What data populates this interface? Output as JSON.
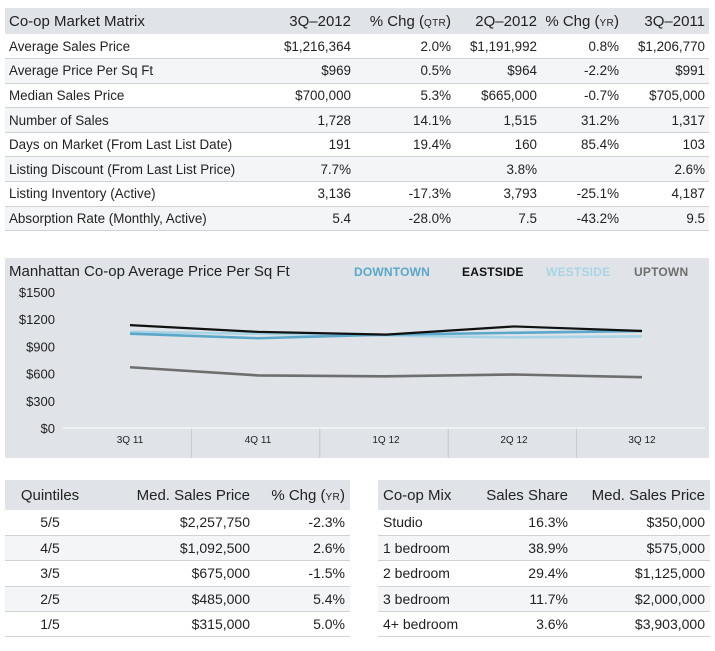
{
  "matrix": {
    "headers": [
      "Co-op  Market Matrix",
      "3Q–2012",
      "% Chg (",
      "QTR",
      ")",
      "2Q–2012",
      "% Chg (",
      "YR",
      ")",
      "3Q–2011"
    ],
    "rows": [
      [
        "Average Sales Price",
        "$1,216,364",
        "2.0%",
        "$1,191,992",
        "0.8%",
        "$1,206,770"
      ],
      [
        "Average Price Per Sq Ft",
        "$969",
        "0.5%",
        "$964",
        "-2.2%",
        "$991"
      ],
      [
        "Median Sales Price",
        "$700,000",
        "5.3%",
        "$665,000",
        "-0.7%",
        "$705,000"
      ],
      [
        "Number of Sales",
        "1,728",
        "14.1%",
        "1,515",
        "31.2%",
        "1,317"
      ],
      [
        "Days on Market (From Last List Date)",
        "191",
        "19.4%",
        "160",
        "85.4%",
        "103"
      ],
      [
        "Listing Discount (From Last List Price)",
        "7.7%",
        "",
        "3.8%",
        "",
        "2.6%"
      ],
      [
        "Listing Inventory (Active)",
        "3,136",
        "-17.3%",
        "3,793",
        "-25.1%",
        "4,187"
      ],
      [
        "Absorption Rate (Monthly, Active)",
        "5.4",
        "-28.0%",
        "7.5",
        "-43.2%",
        "9.5"
      ]
    ]
  },
  "chart_data": {
    "type": "line",
    "title": "Manhattan Co-op  Average Price Per Sq Ft",
    "categories": [
      "3Q 11",
      "4Q 11",
      "1Q 12",
      "2Q 12",
      "3Q 12"
    ],
    "yticks": [
      "$1500",
      "$1200",
      "$900",
      "$600",
      "$300",
      "$0"
    ],
    "ylim": [
      0,
      1500
    ],
    "grid": false,
    "legend_position": "top-right",
    "series": [
      {
        "name": "DOWNTOWN",
        "color": "#5aa7c9",
        "values": [
          1040,
          990,
          1030,
          1050,
          1070
        ]
      },
      {
        "name": "EASTSIDE",
        "color": "#111111",
        "values": [
          1135,
          1060,
          1030,
          1120,
          1070
        ]
      },
      {
        "name": "WESTSIDE",
        "color": "#a9d4e6",
        "values": [
          1060,
          1040,
          1020,
          1000,
          1010
        ]
      },
      {
        "name": "UPTOWN",
        "color": "#6e6e6e",
        "values": [
          670,
          580,
          570,
          590,
          560
        ]
      }
    ]
  },
  "quintiles": {
    "headers": [
      "Quintiles",
      "Med. Sales Price",
      "% Chg (",
      "YR",
      ")"
    ],
    "rows": [
      [
        "5/5",
        "$2,257,750",
        "-2.3%"
      ],
      [
        "4/5",
        "$1,092,500",
        "2.6%"
      ],
      [
        "3/5",
        "$675,000",
        "-1.5%"
      ],
      [
        "2/5",
        "$485,000",
        "5.4%"
      ],
      [
        "1/5",
        "$315,000",
        "5.0%"
      ]
    ]
  },
  "mix": {
    "headers": [
      "Co-op Mix",
      "Sales Share",
      "Med. Sales Price"
    ],
    "rows": [
      [
        "Studio",
        "16.3%",
        "$350,000"
      ],
      [
        "1 bedroom",
        "38.9%",
        "$575,000"
      ],
      [
        "2 bedroom",
        "29.4%",
        "$1,125,000"
      ],
      [
        "3 bedroom",
        "11.7%",
        "$2,000,000"
      ],
      [
        "4+ bedroom",
        "3.6%",
        "$3,903,000"
      ]
    ]
  }
}
